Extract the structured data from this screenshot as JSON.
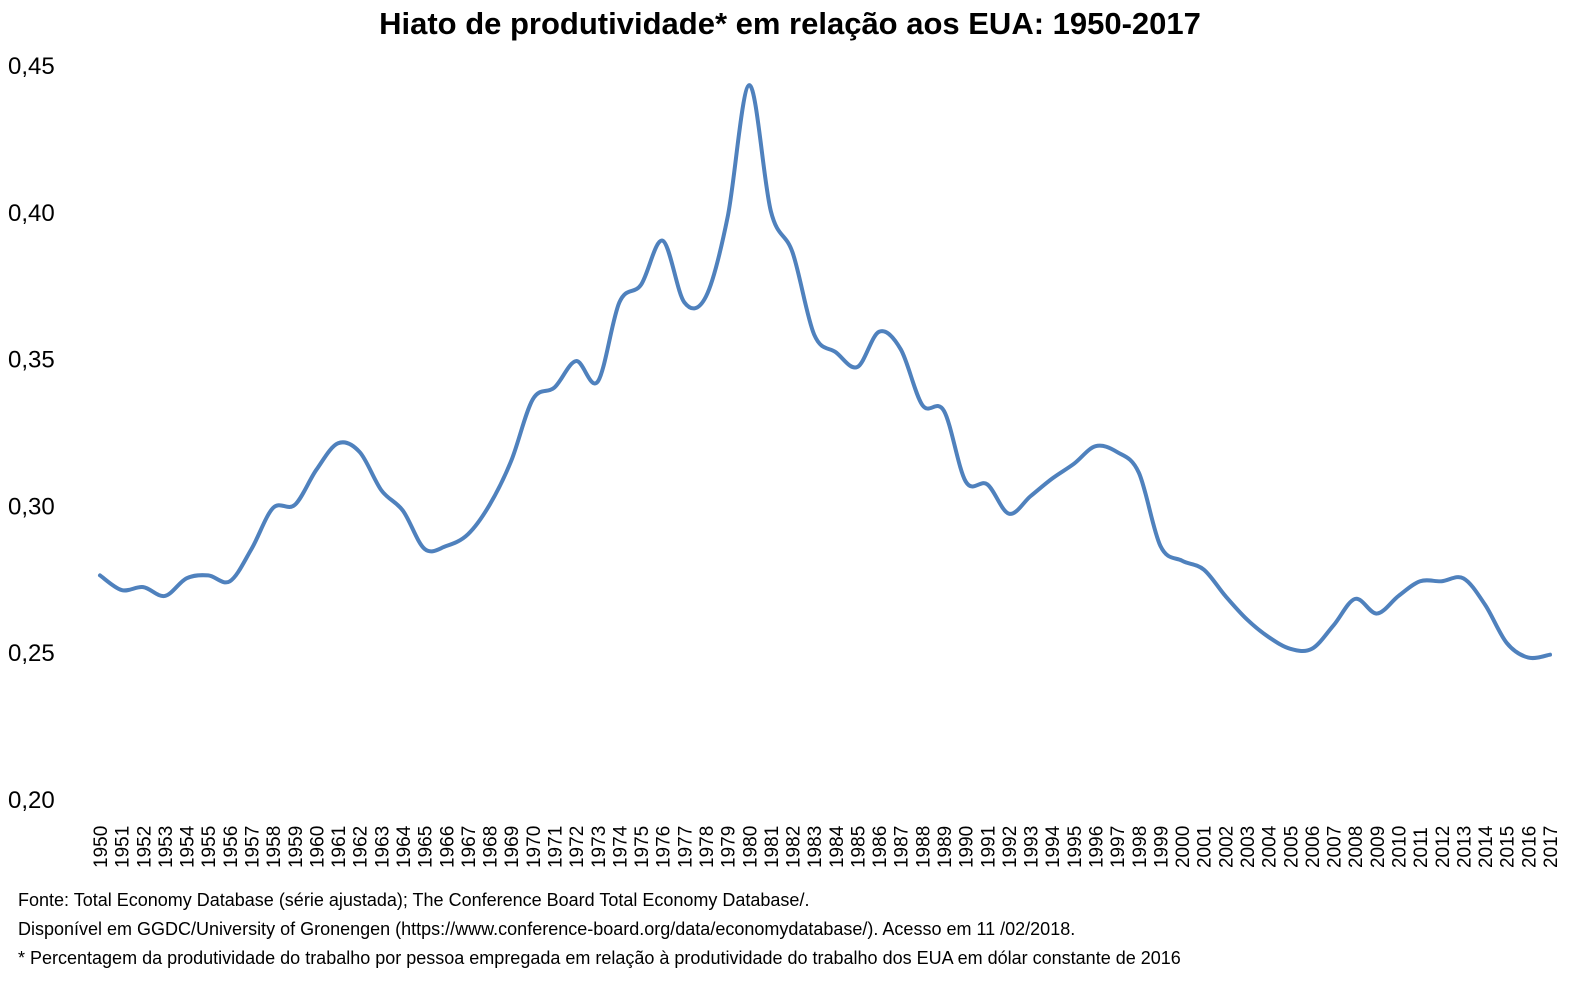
{
  "chart_data": {
    "type": "line",
    "title": "Hiato de produtividade* em relação aos EUA: 1950-2017",
    "xlabel": "",
    "ylabel": "",
    "ylim": [
      0.2,
      0.45
    ],
    "yticks": [
      "0,20",
      "0,25",
      "0,30",
      "0,35",
      "0,40",
      "0,45"
    ],
    "ytick_values": [
      0.2,
      0.25,
      0.3,
      0.35,
      0.4,
      0.45
    ],
    "grid": false,
    "legend": "none",
    "line_color": "#4F81BD",
    "x": [
      1950,
      1951,
      1952,
      1953,
      1954,
      1955,
      1956,
      1957,
      1958,
      1959,
      1960,
      1961,
      1962,
      1963,
      1964,
      1965,
      1966,
      1967,
      1968,
      1969,
      1970,
      1971,
      1972,
      1973,
      1974,
      1975,
      1976,
      1977,
      1978,
      1979,
      1980,
      1981,
      1982,
      1983,
      1984,
      1985,
      1986,
      1987,
      1988,
      1989,
      1990,
      1991,
      1992,
      1993,
      1994,
      1995,
      1996,
      1997,
      1998,
      1999,
      2000,
      2001,
      2002,
      2003,
      2004,
      2005,
      2006,
      2007,
      2008,
      2009,
      2010,
      2011,
      2012,
      2013,
      2014,
      2015,
      2016,
      2017
    ],
    "series": [
      {
        "values": [
          0.2765,
          0.2715,
          0.2725,
          0.2695,
          0.2755,
          0.2765,
          0.2745,
          0.2855,
          0.2995,
          0.3005,
          0.3125,
          0.3215,
          0.3185,
          0.3055,
          0.2985,
          0.2855,
          0.2865,
          0.2905,
          0.3005,
          0.3155,
          0.3365,
          0.3405,
          0.3495,
          0.3425,
          0.3695,
          0.3755,
          0.3905,
          0.3695,
          0.3715,
          0.3985,
          0.4435,
          0.4005,
          0.3865,
          0.3585,
          0.3525,
          0.3475,
          0.3595,
          0.3535,
          0.3345,
          0.3325,
          0.3085,
          0.3075,
          0.2975,
          0.3035,
          0.3095,
          0.3145,
          0.3205,
          0.3185,
          0.3115,
          0.2865,
          0.2815,
          0.2785,
          0.2695,
          0.2615,
          0.2555,
          0.2515,
          0.2515,
          0.2595,
          0.2685,
          0.2635,
          0.2695,
          0.2745,
          0.2745,
          0.2755,
          0.2665,
          0.2535,
          0.2485,
          0.2495
        ]
      }
    ]
  },
  "notes": {
    "source": "Fonte: Total Economy Database (série ajustada); The Conference Board Total Economy Database/.",
    "available": "Disponível em  GGDC/University of Gronengen (https://www.conference-board.org/data/economydatabase/). Acesso em 11 /02/2018.",
    "footnote": "* Percentagem da produtividade do trabalho por pessoa empregada em relação à produtividade do trabalho dos EUA em dólar constante de 2016"
  }
}
